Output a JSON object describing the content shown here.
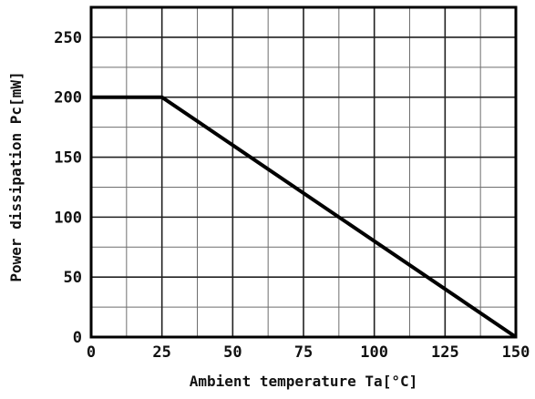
{
  "chart_data": {
    "type": "line",
    "title": "",
    "xlabel": "Ambient temperature Ta[°C]",
    "ylabel": "Power dissipation Pc[mW]",
    "xlim": [
      0,
      150
    ],
    "ylim": [
      0,
      275
    ],
    "x_ticks": [
      0,
      25,
      50,
      75,
      100,
      125,
      150
    ],
    "y_ticks": [
      0,
      50,
      100,
      150,
      200,
      250
    ],
    "x_tick_labels": [
      "0",
      "25",
      "50",
      "75",
      "100",
      "125",
      "150"
    ],
    "y_tick_labels": [
      "0",
      "50",
      "100",
      "150",
      "200",
      "250"
    ],
    "x_minor_step": 12.5,
    "y_minor_step": 25,
    "grid": true,
    "series": [
      {
        "x": [
          0,
          25,
          150
        ],
        "y": [
          200,
          200,
          0
        ],
        "color": "#000000"
      }
    ]
  }
}
